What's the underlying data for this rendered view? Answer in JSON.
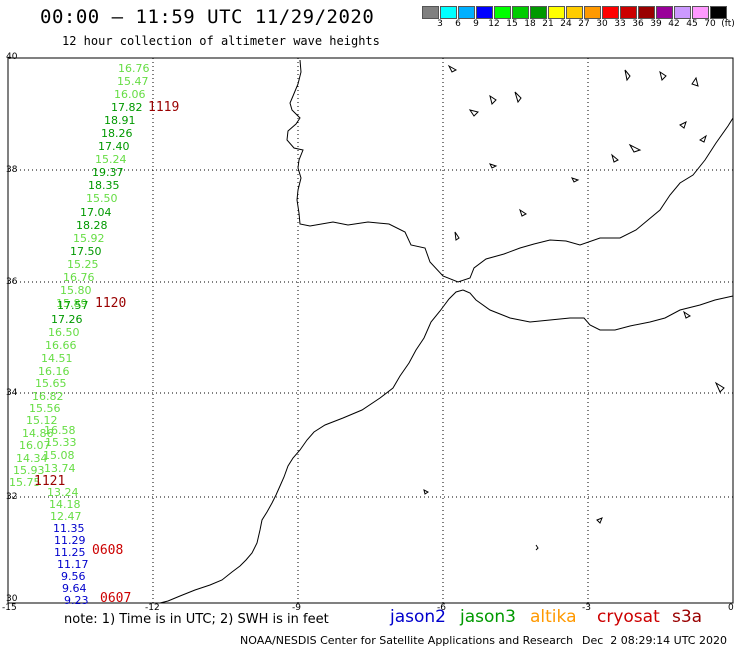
{
  "header": {
    "title": "00:00 – 11:59 UTC 11/29/2020",
    "subtitle": "12 hour collection of altimeter wave heights"
  },
  "color_scale": {
    "colors": [
      "#808080",
      "#00ffff",
      "#00b0ff",
      "#0000ff",
      "#00ff00",
      "#00cc00",
      "#009900",
      "#ffff00",
      "#ffcc00",
      "#ff9900",
      "#ff0000",
      "#cc0000",
      "#990000",
      "#990099",
      "#cc99ff",
      "#ff99ff",
      "#000000"
    ],
    "labels": [
      "3",
      "6",
      "9",
      "12",
      "15",
      "18",
      "21",
      "24",
      "27",
      "30",
      "33",
      "36",
      "39",
      "42",
      "45",
      "70",
      "(ft)"
    ]
  },
  "axes": {
    "lat_labels": [
      "40",
      "38",
      "36",
      "34",
      "32",
      "30"
    ],
    "lon_labels": [
      "-15",
      "-12",
      "-9",
      "-6",
      "-3",
      "0"
    ]
  },
  "track_colors": {
    "jason2": "#0000cc",
    "jason3": "#009900",
    "jason3_light": "#66dd44",
    "altika": "#ff9900",
    "cryosat": "#cc0000",
    "s3a": "#990000"
  },
  "swh_readings": [
    {
      "v": "16.76",
      "c": "jason3_light"
    },
    {
      "v": "15.47",
      "c": "jason3_light"
    },
    {
      "v": "16.06",
      "c": "jason3_light"
    },
    {
      "v": "17.82",
      "c": "jason3"
    },
    {
      "v": "18.91",
      "c": "jason3"
    },
    {
      "v": "18.26",
      "c": "jason3"
    },
    {
      "v": "17.40",
      "c": "jason3"
    },
    {
      "v": "15.24",
      "c": "jason3_light"
    },
    {
      "v": "19.37",
      "c": "jason3"
    },
    {
      "v": "18.35",
      "c": "jason3"
    },
    {
      "v": "15.50",
      "c": "jason3_light"
    },
    {
      "v": "17.04",
      "c": "jason3"
    },
    {
      "v": "18.28",
      "c": "jason3"
    },
    {
      "v": "15.92",
      "c": "jason3_light"
    },
    {
      "v": "17.50",
      "c": "jason3"
    },
    {
      "v": "15.25",
      "c": "jason3_light"
    },
    {
      "v": "16.76",
      "c": "jason3_light"
    },
    {
      "v": "15.80",
      "c": "jason3_light"
    },
    {
      "v": "15.89",
      "c": "jason3_light"
    },
    {
      "v": "17.57",
      "c": "jason3"
    },
    {
      "v": "17.26",
      "c": "jason3"
    },
    {
      "v": "16.50",
      "c": "jason3_light"
    },
    {
      "v": "16.66",
      "c": "jason3_light"
    },
    {
      "v": "14.51",
      "c": "jason3_light"
    },
    {
      "v": "16.16",
      "c": "jason3_light"
    },
    {
      "v": "15.65",
      "c": "jason3_light"
    },
    {
      "v": "16.82",
      "c": "jason3_light"
    },
    {
      "v": "15.56",
      "c": "jason3_light"
    },
    {
      "v": "15.12",
      "c": "jason3_light"
    },
    {
      "v": "14.86",
      "c": "jason3_light"
    },
    {
      "v": "16.58",
      "c": "jason3_light"
    },
    {
      "v": "16.07",
      "c": "jason3_light"
    },
    {
      "v": "15.33",
      "c": "jason3_light"
    },
    {
      "v": "14.34",
      "c": "jason3_light"
    },
    {
      "v": "15.08",
      "c": "jason3_light"
    },
    {
      "v": "15.93",
      "c": "jason3_light"
    },
    {
      "v": "13.74",
      "c": "jason3_light"
    },
    {
      "v": "15.75",
      "c": "jason3_light"
    },
    {
      "v": "13.24",
      "c": "jason3_light"
    },
    {
      "v": "14.18",
      "c": "jason3_light"
    },
    {
      "v": "12.47",
      "c": "jason3_light"
    },
    {
      "v": "11.35",
      "c": "jason2"
    },
    {
      "v": "11.29",
      "c": "jason2"
    },
    {
      "v": "11.25",
      "c": "jason2"
    },
    {
      "v": "11.17",
      "c": "jason2"
    },
    {
      "v": "9.56",
      "c": "jason2"
    },
    {
      "v": "9.64",
      "c": "jason2"
    },
    {
      "v": "9.23",
      "c": "jason2"
    }
  ],
  "pass_times": [
    {
      "t": "1119",
      "c": "s3a"
    },
    {
      "t": "1120",
      "c": "s3a"
    },
    {
      "t": "1121",
      "c": "s3a"
    },
    {
      "t": "0608",
      "c": "cryosat"
    },
    {
      "t": "0607",
      "c": "cryosat"
    }
  ],
  "note": "note: 1) Time is in UTC; 2) SWH is in feet",
  "satellites": [
    {
      "name": "jason2",
      "c": "jason2"
    },
    {
      "name": "jason3",
      "c": "jason3"
    },
    {
      "name": "altika",
      "c": "altika"
    },
    {
      "name": "cryosat",
      "c": "cryosat"
    },
    {
      "name": "s3a",
      "c": "s3a"
    }
  ],
  "footer": {
    "agency": "NOAA/NESDIS Center for Satellite Applications and Research",
    "timestamp": "Dec  2 08:29:14 UTC 2020"
  }
}
